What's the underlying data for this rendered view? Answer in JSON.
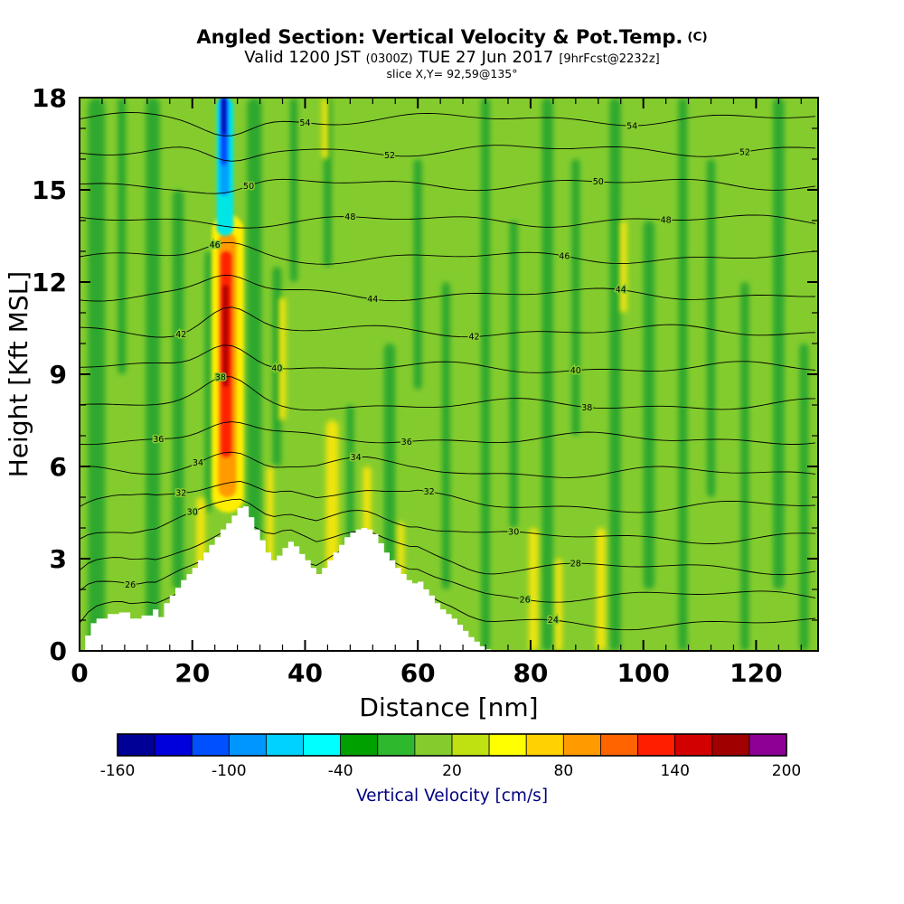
{
  "header": {
    "title_main": "Angled Section: Vertical Velocity & Pot.Temp.",
    "title_unit": "(C)",
    "valid_1": "Valid 1200 JST",
    "valid_2": "(0300Z)",
    "valid_3": "TUE 27 Jun 2017",
    "valid_4": "[9hrFcst@2232z]",
    "slice": "slice X,Y= 92,59@135°"
  },
  "chart_data": {
    "type": "heatmap",
    "subtype": "filled-contour cross-section with line contours",
    "title": "Angled Section: Vertical Velocity & Pot.Temp. (C)",
    "valid": "Valid 1200 JST (0300Z) TUE 27 Jun 2017 [9hrFcst@2232z]",
    "slice": "slice X,Y= 92,59@135°",
    "xlabel": "Distance [nm]",
    "ylabel": "Height [Kft MSL]",
    "xlim": [
      0,
      131
    ],
    "ylim": [
      0,
      18
    ],
    "xticks": [
      0,
      20,
      40,
      60,
      80,
      100,
      120
    ],
    "yticks": [
      0,
      3,
      6,
      9,
      12,
      15,
      18
    ],
    "x_minor_step": 4,
    "y_minor_step": 1,
    "palette": {
      "base": "#84cc2e",
      "dark": "#2fa82f",
      "yellow": "#f0e40a"
    },
    "colorbar": {
      "label": "Vertical Velocity [cm/s]",
      "label_color": "#000080",
      "min": -160,
      "max": 200,
      "step": 20,
      "tick_labels": [
        -160,
        -100,
        -40,
        20,
        80,
        140,
        200
      ],
      "colors": [
        "#000096",
        "#0000dc",
        "#0050ff",
        "#0096ff",
        "#00d2ff",
        "#00ffff",
        "#00a000",
        "#2eb82e",
        "#84cc2e",
        "#bfe112",
        "#ffff00",
        "#ffd200",
        "#ff9b00",
        "#ff6400",
        "#ff1e00",
        "#d20000",
        "#a00000",
        "#8c0096"
      ]
    },
    "contour_field": {
      "name": "Pot.Temp.",
      "units": "C",
      "labeled_levels": [
        24,
        26,
        28,
        30,
        32,
        34,
        36,
        38,
        40,
        42,
        44,
        46,
        48,
        50,
        52,
        54
      ]
    },
    "contour_lines": [
      {
        "level": 24,
        "h": 0.9,
        "lx": [
          84
        ]
      },
      {
        "level": 26,
        "h": 1.8,
        "lx": [
          9,
          79
        ]
      },
      {
        "level": 28,
        "h": 2.7,
        "lx": [
          88
        ]
      },
      {
        "level": 30,
        "h": 3.7,
        "lx": [
          20,
          77
        ]
      },
      {
        "level": 32,
        "h": 4.7,
        "lx": [
          18,
          62
        ]
      },
      {
        "level": 34,
        "h": 5.8,
        "lx": [
          21,
          49
        ]
      },
      {
        "level": 36,
        "h": 6.9,
        "lx": [
          14,
          58
        ]
      },
      {
        "level": 38,
        "h": 8.0,
        "lx": [
          25,
          90
        ]
      },
      {
        "level": 40,
        "h": 9.2,
        "lx": [
          35,
          88
        ]
      },
      {
        "level": 42,
        "h": 10.4,
        "lx": [
          18,
          70
        ]
      },
      {
        "level": 44,
        "h": 11.6,
        "lx": [
          52,
          96
        ]
      },
      {
        "level": 46,
        "h": 12.8,
        "lx": [
          24,
          86
        ]
      },
      {
        "level": 48,
        "h": 14.0,
        "lx": [
          48,
          104
        ]
      },
      {
        "level": 50,
        "h": 15.2,
        "lx": [
          30,
          92
        ]
      },
      {
        "level": 52,
        "h": 16.3,
        "lx": [
          55,
          118
        ]
      },
      {
        "level": 54,
        "h": 17.3,
        "lx": [
          40,
          98
        ]
      }
    ],
    "terrain_profile": [
      [
        0,
        0
      ],
      [
        1,
        0.5
      ],
      [
        2,
        0.9
      ],
      [
        3,
        1.05
      ],
      [
        5,
        1.2
      ],
      [
        7,
        1.25
      ],
      [
        9,
        1.05
      ],
      [
        11,
        1.15
      ],
      [
        13,
        1.35
      ],
      [
        14,
        1.1
      ],
      [
        15,
        1.55
      ],
      [
        16,
        1.8
      ],
      [
        17,
        2.05
      ],
      [
        18,
        2.3
      ],
      [
        19,
        2.5
      ],
      [
        20,
        2.7
      ],
      [
        21,
        2.95
      ],
      [
        22,
        3.2
      ],
      [
        23,
        3.45
      ],
      [
        24,
        3.7
      ],
      [
        25,
        3.95
      ],
      [
        26,
        4.15
      ],
      [
        27,
        4.4
      ],
      [
        28,
        4.65
      ],
      [
        29,
        4.7
      ],
      [
        30,
        4.35
      ],
      [
        31,
        3.95
      ],
      [
        32,
        3.6
      ],
      [
        33,
        3.2
      ],
      [
        34,
        2.95
      ],
      [
        35,
        3.1
      ],
      [
        36,
        3.35
      ],
      [
        37,
        3.55
      ],
      [
        38,
        3.4
      ],
      [
        39,
        3.15
      ],
      [
        40,
        2.95
      ],
      [
        41,
        2.7
      ],
      [
        42,
        2.5
      ],
      [
        43,
        2.7
      ],
      [
        44,
        2.95
      ],
      [
        45,
        3.2
      ],
      [
        46,
        3.45
      ],
      [
        47,
        3.7
      ],
      [
        48,
        3.85
      ],
      [
        49,
        3.95
      ],
      [
        50,
        4.0
      ],
      [
        51,
        3.95
      ],
      [
        52,
        3.8
      ],
      [
        53,
        3.5
      ],
      [
        54,
        3.2
      ],
      [
        55,
        2.95
      ],
      [
        56,
        2.7
      ],
      [
        57,
        2.5
      ],
      [
        58,
        2.3
      ],
      [
        59,
        2.2
      ],
      [
        60,
        2.25
      ],
      [
        61,
        2.0
      ],
      [
        62,
        1.8
      ],
      [
        63,
        1.55
      ],
      [
        64,
        1.35
      ],
      [
        65,
        1.2
      ],
      [
        66,
        1.05
      ],
      [
        67,
        0.85
      ],
      [
        68,
        0.65
      ],
      [
        69,
        0.45
      ],
      [
        70,
        0.3
      ],
      [
        71,
        0.15
      ],
      [
        72,
        0.05
      ],
      [
        73,
        0
      ]
    ],
    "velocity_cells": [
      {
        "x": 26.3,
        "w": 5.6,
        "y0": 4.5,
        "y1": 14.2,
        "c": "#ffee00"
      },
      {
        "x": 26.2,
        "w": 3.2,
        "y0": 5.0,
        "y1": 13.6,
        "c": "#ff9b00"
      },
      {
        "x": 26.0,
        "w": 1.9,
        "y0": 6.3,
        "y1": 13.0,
        "c": "#ff2000"
      },
      {
        "x": 25.9,
        "w": 1.0,
        "y0": 8.6,
        "y1": 11.9,
        "c": "#b40000"
      },
      {
        "x": 25.8,
        "w": 3.0,
        "y0": 13.5,
        "y1": 18.0,
        "c": "#00e6e6"
      },
      {
        "x": 25.7,
        "w": 1.7,
        "y0": 14.8,
        "y1": 18.0,
        "c": "#00a0ff"
      },
      {
        "x": 25.6,
        "w": 1.0,
        "y0": 15.8,
        "y1": 18.0,
        "c": "#0046ff"
      },
      {
        "x": 25.6,
        "w": 0.6,
        "y0": 16.8,
        "y1": 18.0,
        "c": "#0000a0"
      }
    ],
    "shading_bands": [
      {
        "x": 3,
        "w": 3,
        "y0": 0,
        "y1": 18,
        "k": "dark"
      },
      {
        "x": 7.5,
        "w": 1.5,
        "y0": 9,
        "y1": 18,
        "k": "dark"
      },
      {
        "x": 13,
        "w": 2.5,
        "y0": 0,
        "y1": 18,
        "k": "dark"
      },
      {
        "x": 17.5,
        "w": 2,
        "y0": 2,
        "y1": 15,
        "k": "dark"
      },
      {
        "x": 22.8,
        "w": 1.2,
        "y0": 4.5,
        "y1": 13,
        "k": "dark"
      },
      {
        "x": 31,
        "w": 2.6,
        "y0": 3.5,
        "y1": 18,
        "k": "dark"
      },
      {
        "x": 35,
        "w": 1.6,
        "y0": 6,
        "y1": 12.5,
        "k": "dark"
      },
      {
        "x": 38,
        "w": 1.4,
        "y0": 12,
        "y1": 18,
        "k": "dark"
      },
      {
        "x": 44,
        "w": 1.5,
        "y0": 12.5,
        "y1": 18,
        "k": "dark"
      },
      {
        "x": 48,
        "w": 1.4,
        "y0": 1.5,
        "y1": 8,
        "k": "dark"
      },
      {
        "x": 55,
        "w": 2,
        "y0": 1,
        "y1": 10,
        "k": "dark"
      },
      {
        "x": 60,
        "w": 1.5,
        "y0": 8.5,
        "y1": 16,
        "k": "dark"
      },
      {
        "x": 65,
        "w": 1.5,
        "y0": 2,
        "y1": 12,
        "k": "dark"
      },
      {
        "x": 72,
        "w": 1.6,
        "y0": 0,
        "y1": 18,
        "k": "dark"
      },
      {
        "x": 77,
        "w": 1.5,
        "y0": 4,
        "y1": 14,
        "k": "dark"
      },
      {
        "x": 83,
        "w": 2,
        "y0": 0,
        "y1": 18,
        "k": "dark"
      },
      {
        "x": 88,
        "w": 1.5,
        "y0": 7,
        "y1": 16,
        "k": "dark"
      },
      {
        "x": 95,
        "w": 2,
        "y0": 0,
        "y1": 18,
        "k": "dark"
      },
      {
        "x": 101,
        "w": 2,
        "y0": 2,
        "y1": 14,
        "k": "dark"
      },
      {
        "x": 107,
        "w": 1.6,
        "y0": 0,
        "y1": 18,
        "k": "dark"
      },
      {
        "x": 112,
        "w": 1.5,
        "y0": 5,
        "y1": 16,
        "k": "dark"
      },
      {
        "x": 118,
        "w": 1.5,
        "y0": 0,
        "y1": 12,
        "k": "dark"
      },
      {
        "x": 124,
        "w": 2,
        "y0": 2,
        "y1": 18,
        "k": "dark"
      },
      {
        "x": 128.5,
        "w": 1.6,
        "y0": 0,
        "y1": 10,
        "k": "dark"
      },
      {
        "x": 21.5,
        "w": 1.6,
        "y0": 0.5,
        "y1": 5,
        "k": "yellow"
      },
      {
        "x": 33.8,
        "w": 1.2,
        "y0": 2.5,
        "y1": 6,
        "k": "yellow"
      },
      {
        "x": 36,
        "w": 1.2,
        "y0": 7.5,
        "y1": 11.5,
        "k": "yellow"
      },
      {
        "x": 44.8,
        "w": 2.2,
        "y0": 2.5,
        "y1": 7.5,
        "k": "yellow"
      },
      {
        "x": 51,
        "w": 1.5,
        "y0": 3,
        "y1": 6,
        "k": "yellow"
      },
      {
        "x": 57,
        "w": 1.2,
        "y0": 2,
        "y1": 4.2,
        "k": "yellow"
      },
      {
        "x": 43.5,
        "w": 1.2,
        "y0": 16,
        "y1": 18,
        "k": "yellow"
      },
      {
        "x": 80.5,
        "w": 1.6,
        "y0": 0,
        "y1": 4,
        "k": "yellow"
      },
      {
        "x": 85,
        "w": 1.2,
        "y0": 0,
        "y1": 3,
        "k": "yellow"
      },
      {
        "x": 92.5,
        "w": 1.6,
        "y0": 0,
        "y1": 4,
        "k": "yellow"
      },
      {
        "x": 96.5,
        "w": 1.2,
        "y0": 11,
        "y1": 14,
        "k": "yellow"
      }
    ]
  }
}
